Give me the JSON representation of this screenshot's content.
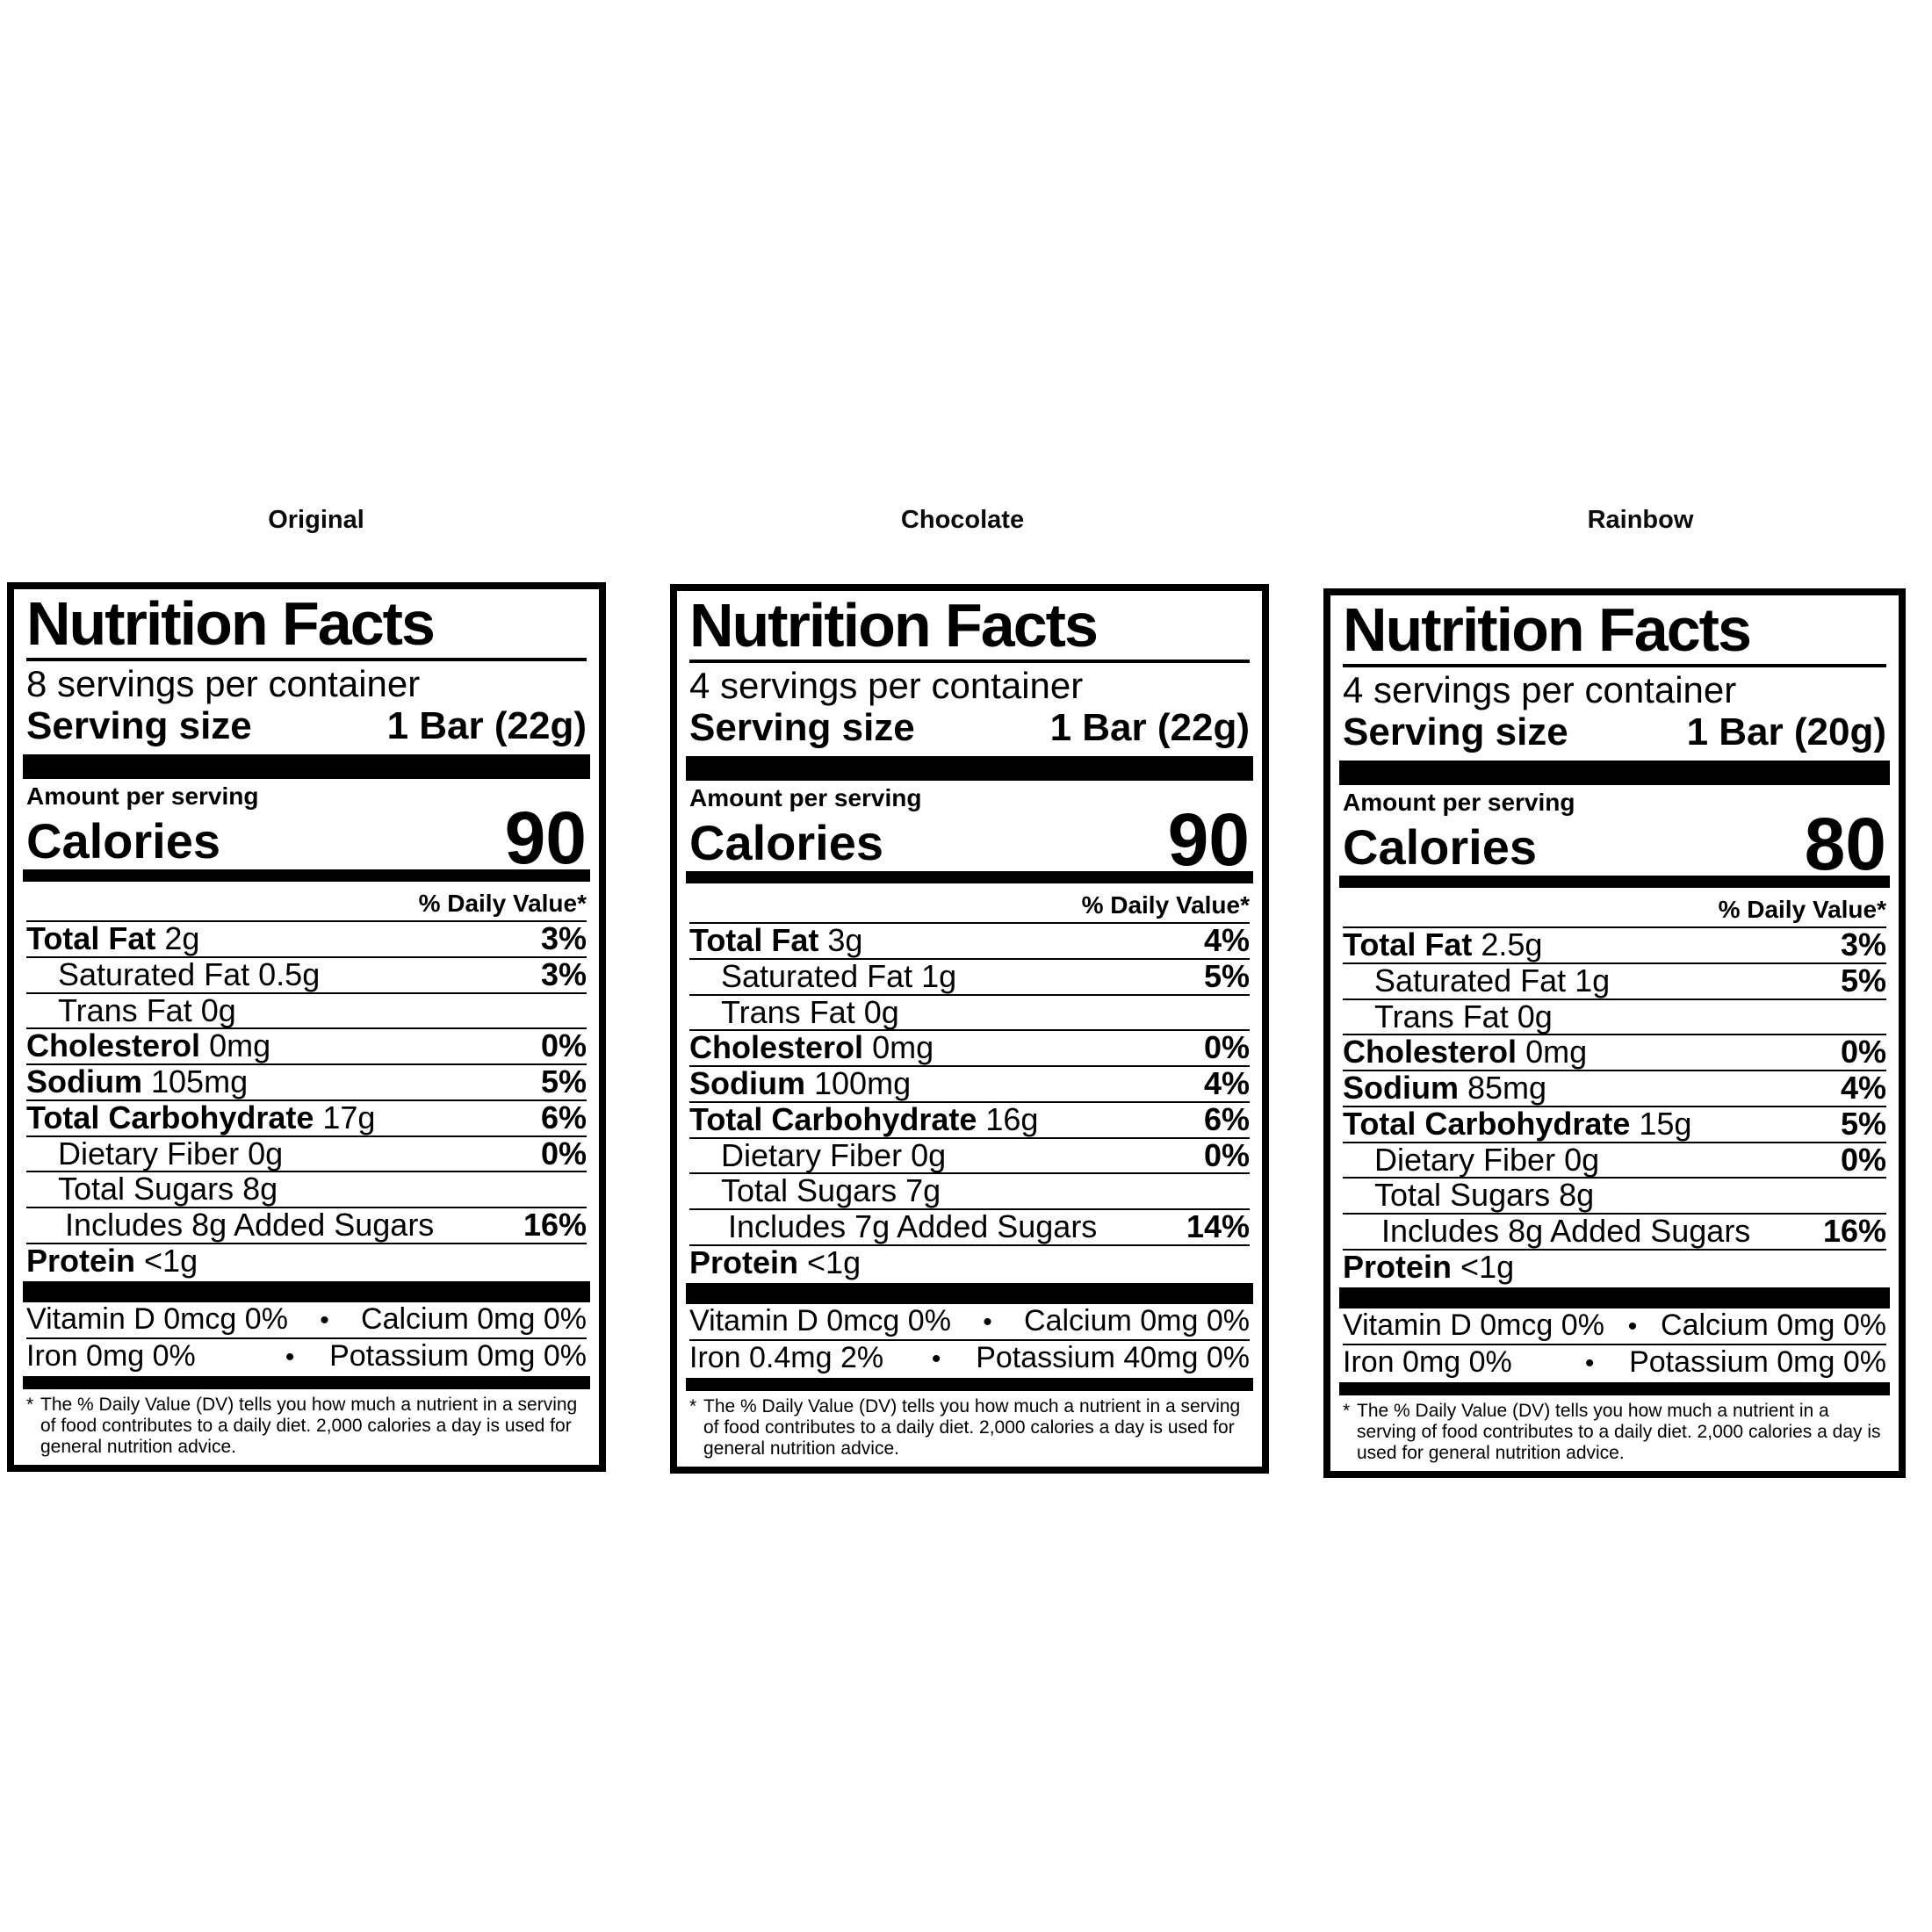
{
  "bullet": "•",
  "footnote_marker": "*",
  "footnote_text": "The % Daily Value (DV) tells you how much a nutrient in a serving of food contributes to a daily diet. 2,000 calories a day is used for general nutrition advice.",
  "labels": [
    {
      "variant": "Original",
      "title": "Nutrition Facts",
      "servings_per_container": "8 servings per container",
      "serving_size_label": "Serving size",
      "serving_size_value": "1 Bar (22g)",
      "amount_per_serving": "Amount per serving",
      "calories_label": "Calories",
      "calories_value": "90",
      "daily_value_header": "% Daily Value*",
      "rows": [
        {
          "name": "Total Fat",
          "amount": "2g",
          "dv": "3%"
        },
        {
          "name": "Saturated Fat",
          "amount": "0.5g",
          "dv": "3%"
        },
        {
          "name": "Trans Fat",
          "amount": "0g",
          "dv": ""
        },
        {
          "name": "Cholesterol",
          "amount": "0mg",
          "dv": "0%"
        },
        {
          "name": "Sodium",
          "amount": "105mg",
          "dv": "5%"
        },
        {
          "name": "Total Carbohydrate",
          "amount": "17g",
          "dv": "6%"
        },
        {
          "name": "Dietary Fiber",
          "amount": "0g",
          "dv": "0%"
        },
        {
          "name": "Total Sugars",
          "amount": "8g",
          "dv": ""
        },
        {
          "name": "Includes 8g Added Sugars",
          "amount": "",
          "dv": "16%"
        },
        {
          "name": "Protein",
          "amount": "<1g",
          "dv": ""
        }
      ],
      "micros": [
        {
          "left": "Vitamin D 0mcg 0%",
          "right": "Calcium 0mg 0%"
        },
        {
          "left": "Iron 0mg 0%",
          "right": "Potassium 0mg 0%"
        }
      ]
    },
    {
      "variant": "Chocolate",
      "title": "Nutrition Facts",
      "servings_per_container": "4 servings per container",
      "serving_size_label": "Serving size",
      "serving_size_value": "1 Bar (22g)",
      "amount_per_serving": "Amount per serving",
      "calories_label": "Calories",
      "calories_value": "90",
      "daily_value_header": "% Daily Value*",
      "rows": [
        {
          "name": "Total Fat",
          "amount": "3g",
          "dv": "4%"
        },
        {
          "name": "Saturated Fat",
          "amount": "1g",
          "dv": "5%"
        },
        {
          "name": "Trans Fat",
          "amount": "0g",
          "dv": ""
        },
        {
          "name": "Cholesterol",
          "amount": "0mg",
          "dv": "0%"
        },
        {
          "name": "Sodium",
          "amount": "100mg",
          "dv": "4%"
        },
        {
          "name": "Total Carbohydrate",
          "amount": "16g",
          "dv": "6%"
        },
        {
          "name": "Dietary Fiber",
          "amount": "0g",
          "dv": "0%"
        },
        {
          "name": "Total Sugars",
          "amount": "7g",
          "dv": ""
        },
        {
          "name": "Includes 7g Added Sugars",
          "amount": "",
          "dv": "14%"
        },
        {
          "name": "Protein",
          "amount": "<1g",
          "dv": ""
        }
      ],
      "micros": [
        {
          "left": "Vitamin D 0mcg 0%",
          "right": "Calcium 0mg 0%"
        },
        {
          "left": "Iron 0.4mg 2%",
          "right": "Potassium 40mg 0%"
        }
      ]
    },
    {
      "variant": "Rainbow",
      "title": "Nutrition Facts",
      "servings_per_container": "4 servings per container",
      "serving_size_label": "Serving size",
      "serving_size_value": "1 Bar (20g)",
      "amount_per_serving": "Amount per serving",
      "calories_label": "Calories",
      "calories_value": "80",
      "daily_value_header": "% Daily Value*",
      "rows": [
        {
          "name": "Total Fat",
          "amount": "2.5g",
          "dv": "3%"
        },
        {
          "name": "Saturated Fat",
          "amount": "1g",
          "dv": "5%"
        },
        {
          "name": "Trans Fat",
          "amount": "0g",
          "dv": ""
        },
        {
          "name": "Cholesterol",
          "amount": "0mg",
          "dv": "0%"
        },
        {
          "name": "Sodium",
          "amount": "85mg",
          "dv": "4%"
        },
        {
          "name": "Total Carbohydrate",
          "amount": "15g",
          "dv": "5%"
        },
        {
          "name": "Dietary Fiber",
          "amount": "0g",
          "dv": "0%"
        },
        {
          "name": "Total Sugars",
          "amount": "8g",
          "dv": ""
        },
        {
          "name": "Includes 8g Added Sugars",
          "amount": "",
          "dv": "16%"
        },
        {
          "name": "Protein",
          "amount": "<1g",
          "dv": ""
        }
      ],
      "micros": [
        {
          "left": "Vitamin D 0mcg 0%",
          "right": "Calcium 0mg 0%"
        },
        {
          "left": "Iron 0mg 0%",
          "right": "Potassium 0mg 0%"
        }
      ]
    }
  ]
}
